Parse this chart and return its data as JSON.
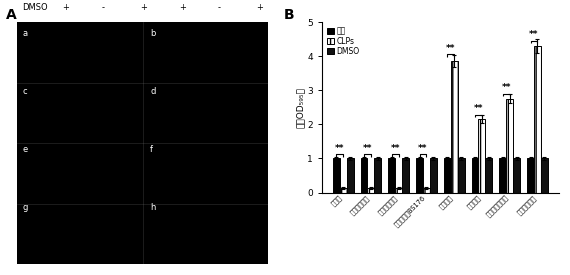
{
  "categories": [
    "脿藻菌",
    "蜡样芽孢杆菌",
    "枯草芽孢杆菌",
    "荧光假单胞BS176",
    "地毛藻菌",
    "刻纹假菌",
    "金黄色葡萄球菌",
    "藤氏假单胞菌"
  ],
  "control": [
    1.0,
    1.0,
    1.0,
    1.0,
    1.0,
    1.0,
    1.0,
    1.0
  ],
  "CLPs": [
    0.13,
    0.13,
    0.13,
    0.13,
    3.85,
    2.15,
    2.75,
    4.3
  ],
  "DMSO": [
    1.0,
    1.0,
    1.0,
    1.0,
    1.0,
    1.0,
    1.0,
    1.0
  ],
  "ylabel": "相对OD₅₉₅値",
  "ylim": [
    0,
    5
  ],
  "yticks": [
    0,
    1,
    2,
    3,
    4,
    5
  ],
  "legend_labels": [
    "对照",
    "CLPs",
    "DMSO"
  ],
  "sig_heights": [
    1.12,
    1.12,
    1.12,
    1.12,
    4.05,
    2.28,
    2.9,
    4.45
  ],
  "bar_width": 0.25,
  "color_control": "#000000",
  "color_CLPs": "#ffffff",
  "color_DMSO": "#111111",
  "hatch_CLPs": "|||",
  "error_control": [
    0.04,
    0.04,
    0.04,
    0.04,
    0.04,
    0.04,
    0.04,
    0.04
  ],
  "error_CLPs": [
    0.03,
    0.03,
    0.03,
    0.03,
    0.18,
    0.12,
    0.13,
    0.2
  ],
  "error_DMSO": [
    0.04,
    0.04,
    0.04,
    0.04,
    0.04,
    0.04,
    0.04,
    0.04
  ]
}
